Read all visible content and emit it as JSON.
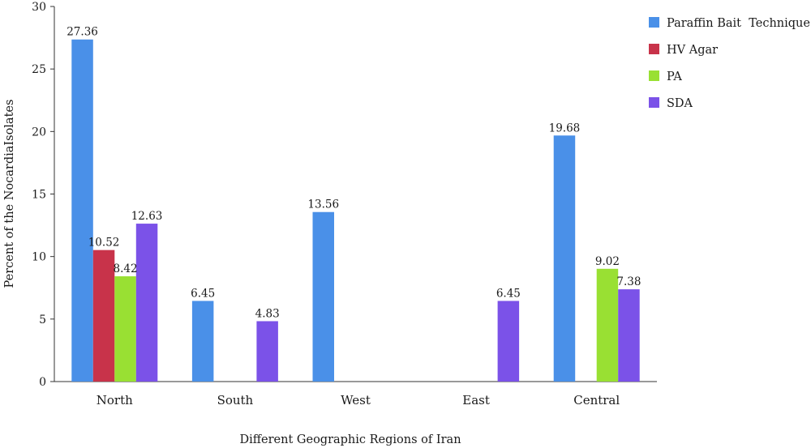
{
  "chart_data": {
    "type": "bar",
    "title": "",
    "xlabel": "Different Geographic Regions of Iran",
    "ylabel": "Percent of the NocardiaIsolates",
    "ylim": [
      0,
      30
    ],
    "yticks": [
      0,
      5,
      10,
      15,
      20,
      25,
      30
    ],
    "categories": [
      "North",
      "South",
      "West",
      "East",
      "Central"
    ],
    "legend_position": "top-right",
    "grid": false,
    "series": [
      {
        "name": "Paraffin Bait  Technique",
        "color": "#4a90e8",
        "values": [
          27.36,
          6.45,
          13.56,
          null,
          19.68
        ],
        "labels": [
          "27.36",
          "6.45",
          "13.56",
          "",
          "19.68"
        ]
      },
      {
        "name": "HV Agar",
        "color": "#c8334a",
        "values": [
          10.52,
          null,
          null,
          null,
          null
        ],
        "labels": [
          "10.52",
          "",
          "",
          "",
          ""
        ]
      },
      {
        "name": "PA",
        "color": "#99e033",
        "values": [
          8.42,
          null,
          null,
          null,
          9.02
        ],
        "labels": [
          "8.42",
          "",
          "",
          "",
          "9.02"
        ]
      },
      {
        "name": "SDA",
        "color": "#7b52e8",
        "values": [
          12.63,
          4.83,
          null,
          6.45,
          7.38
        ],
        "labels": [
          "12.63",
          "4.83",
          "",
          "6.45",
          "7.38"
        ]
      }
    ]
  }
}
